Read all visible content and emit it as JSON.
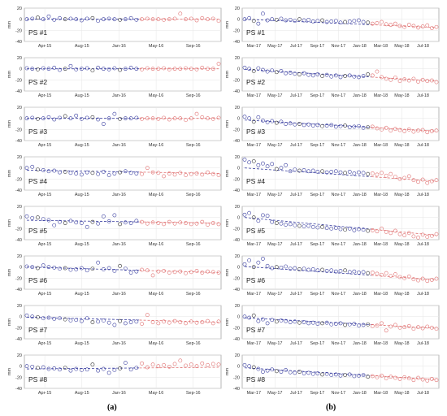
{
  "columns": [
    {
      "label": "(a)",
      "x_ticks": [
        "Apr-15",
        "Aug-15",
        "Jan-16",
        "May-16",
        "Sep-16"
      ],
      "red_start_tick": 3
    },
    {
      "label": "(b)",
      "x_ticks": [
        "Mar-17",
        "May-17",
        "Jul-17",
        "Sep-17",
        "Nov-17",
        "Jan-18",
        "Mar-18",
        "May-18",
        "Jul-18"
      ],
      "red_start_tick": 6
    }
  ],
  "colors": {
    "blue": "#3a3fa0",
    "red": "#e07070",
    "black": "#333333"
  },
  "chart_data": [
    {
      "type": "scatter",
      "panel_group": "(a)",
      "ylabel": "mm",
      "ylim": [
        -40,
        20
      ],
      "yticks": [
        20,
        0,
        -20,
        -40
      ],
      "x_ticks": [
        "Apr-15",
        "Aug-15",
        "Jan-16",
        "May-16",
        "Sep-16"
      ],
      "grid": true,
      "panels": [
        {
          "label": "PS #1",
          "observed": [
            0,
            1,
            3,
            0,
            5,
            -1,
            2,
            0,
            1,
            0,
            -2,
            1,
            2,
            -3,
            0,
            1,
            0,
            -1,
            0,
            2,
            -1,
            0,
            1,
            0,
            0,
            -1,
            0,
            1,
            10,
            0,
            1,
            -2,
            2,
            0,
            1,
            -3
          ],
          "trend_start": 0,
          "trend_end": 0
        },
        {
          "label": "PS #2",
          "observed": [
            1,
            0,
            -1,
            1,
            0,
            2,
            -2,
            0,
            5,
            -1,
            0,
            1,
            -3,
            2,
            0,
            -1,
            1,
            -2,
            0,
            2,
            0,
            -1,
            1,
            0,
            0,
            1,
            -1,
            0,
            0,
            1,
            0,
            -1,
            2,
            0,
            0,
            9
          ],
          "trend_start": 0,
          "trend_end": 0
        },
        {
          "label": "PS #3",
          "observed": [
            0,
            1,
            -1,
            0,
            2,
            -2,
            1,
            4,
            0,
            5,
            -1,
            1,
            2,
            -2,
            -10,
            0,
            8,
            -1,
            0,
            0,
            1,
            -1,
            0,
            0,
            -1,
            1,
            -2,
            0,
            0,
            -3,
            0,
            8,
            2,
            0,
            -1,
            1
          ],
          "trend_start": 0,
          "trend_end": 0
        },
        {
          "label": "PS #4",
          "observed": [
            0,
            2,
            -3,
            -4,
            -6,
            -5,
            -8,
            -7,
            -9,
            -10,
            -12,
            -8,
            -9,
            -11,
            -7,
            -13,
            -10,
            -8,
            -6,
            -9,
            -10,
            -11,
            0,
            -8,
            -9,
            -15,
            -10,
            -12,
            -9,
            -13,
            -11,
            -10,
            -12,
            -8,
            -11,
            -13
          ],
          "trend_start": -4,
          "trend_end": -10
        },
        {
          "label": "PS #5",
          "observed": [
            2,
            -1,
            0,
            -3,
            -5,
            -14,
            -8,
            -10,
            -6,
            -9,
            -10,
            -17,
            -8,
            -11,
            2,
            -7,
            4,
            -12,
            -9,
            -10,
            -6,
            -8,
            -11,
            -9,
            -10,
            -12,
            -8,
            -11,
            -9,
            -10,
            -12,
            -11,
            -8,
            -13,
            -10,
            -12
          ],
          "trend_start": -5,
          "trend_end": -10
        },
        {
          "label": "PS #6",
          "observed": [
            1,
            0,
            -2,
            3,
            0,
            -1,
            -3,
            -2,
            -5,
            -4,
            -2,
            -6,
            -3,
            8,
            -4,
            -2,
            -7,
            2,
            -3,
            -10,
            -8,
            -5,
            -6,
            -15,
            -8,
            -7,
            -10,
            -9,
            -8,
            -11,
            -9,
            -7,
            -10,
            -8,
            -9,
            -10
          ],
          "trend_start": 0,
          "trend_end": -10
        },
        {
          "label": "PS #7",
          "observed": [
            2,
            0,
            -1,
            -3,
            -2,
            -4,
            -3,
            -5,
            -7,
            -6,
            -8,
            -3,
            -10,
            -9,
            -7,
            -11,
            -15,
            -8,
            -12,
            -10,
            -9,
            -13,
            3,
            -10,
            -12,
            -9,
            -11,
            -8,
            -10,
            -12,
            -9,
            -11,
            -10,
            -8,
            -12,
            -9
          ],
          "trend_start": -1,
          "trend_end": -10
        },
        {
          "label": "PS #8",
          "observed": [
            0,
            -1,
            -3,
            -2,
            -5,
            -4,
            -6,
            -3,
            -8,
            -5,
            -7,
            -6,
            3,
            -8,
            -5,
            -12,
            -7,
            -4,
            6,
            -6,
            -3,
            5,
            -2,
            3,
            0,
            2,
            -1,
            4,
            10,
            1,
            3,
            0,
            5,
            2,
            4,
            3
          ],
          "trend_start": -5,
          "trend_end": -2
        }
      ]
    },
    {
      "type": "scatter",
      "panel_group": "(b)",
      "ylabel": "mm",
      "ylim": [
        -40,
        20
      ],
      "yticks": [
        20,
        0,
        -20,
        -40
      ],
      "x_ticks": [
        "Mar-17",
        "May-17",
        "Jul-17",
        "Sep-17",
        "Nov-17",
        "Jan-18",
        "Mar-18",
        "May-18",
        "Jul-18"
      ],
      "grid": true,
      "panels": [
        {
          "label": "PS #1",
          "observed": [
            0,
            2,
            -3,
            -8,
            10,
            -2,
            0,
            -1,
            1,
            -2,
            -1,
            -3,
            0,
            -2,
            -1,
            -4,
            -3,
            -2,
            -5,
            -4,
            -3,
            -6,
            -5,
            -4,
            -3,
            -2,
            -5,
            -6,
            -8,
            -7,
            -5,
            -9,
            -10,
            -8,
            -12,
            -14,
            -10,
            -12,
            -15,
            -13,
            -11,
            -16,
            -14
          ],
          "trend_start": 0,
          "trend_end": -15
        },
        {
          "label": "PS #2",
          "observed": [
            2,
            0,
            -4,
            1,
            -2,
            -5,
            -3,
            -6,
            -4,
            -8,
            -7,
            -9,
            -10,
            -8,
            -11,
            -12,
            -10,
            -13,
            -11,
            -14,
            -12,
            -15,
            -13,
            -12,
            -14,
            -15,
            -13,
            -10,
            -12,
            -5,
            -15,
            -18,
            -20,
            -16,
            -22,
            -19,
            -21,
            -18,
            -23,
            -20,
            -22,
            -21,
            -24
          ],
          "trend_start": -1,
          "trend_end": -22
        },
        {
          "label": "PS #3",
          "observed": [
            3,
            0,
            -6,
            2,
            -4,
            -7,
            -5,
            -8,
            -6,
            -10,
            -9,
            -11,
            -10,
            -12,
            -11,
            -13,
            -12,
            -14,
            -13,
            -12,
            -15,
            -14,
            -13,
            -16,
            -15,
            -14,
            -17,
            -16,
            -15,
            -18,
            -20,
            -17,
            -22,
            -19,
            -21,
            -23,
            -20,
            -24,
            -22,
            -21,
            -25,
            -23,
            -22
          ],
          "trend_start": -3,
          "trend_end": -23
        },
        {
          "label": "PS #4",
          "observed": [
            15,
            10,
            12,
            5,
            8,
            3,
            7,
            -2,
            0,
            5,
            -6,
            -3,
            -5,
            -4,
            -6,
            -5,
            -7,
            -6,
            -8,
            -7,
            -6,
            -8,
            -9,
            -7,
            -10,
            -8,
            -9,
            -11,
            -10,
            -12,
            -9,
            -14,
            -11,
            -16,
            -20,
            -18,
            -15,
            -22,
            -25,
            -21,
            -27,
            -24,
            -22
          ],
          "trend_start": 0,
          "trend_end": -24
        },
        {
          "label": "PS #5",
          "observed": [
            5,
            8,
            0,
            -6,
            4,
            3,
            -8,
            -10,
            -11,
            -13,
            -12,
            -14,
            -15,
            -16,
            -15,
            -17,
            -18,
            -17,
            -19,
            -20,
            -19,
            -21,
            -22,
            -20,
            -23,
            -21,
            -22,
            -24,
            -23,
            -25,
            -20,
            -26,
            -28,
            -24,
            -30,
            -32,
            -28,
            -34,
            -36,
            -31,
            -35,
            -33,
            -30
          ],
          "trend_start": 0,
          "trend_end": -32
        },
        {
          "label": "PS #6",
          "observed": [
            5,
            12,
            0,
            8,
            15,
            2,
            -2,
            0,
            -1,
            1,
            -3,
            -2,
            -4,
            -3,
            -5,
            -4,
            -6,
            -5,
            -7,
            -6,
            -8,
            -7,
            -6,
            -9,
            -8,
            -10,
            -9,
            -11,
            -10,
            -12,
            -14,
            -11,
            -16,
            -13,
            -18,
            -20,
            -17,
            -22,
            -24,
            -21,
            -25,
            -23,
            -21
          ],
          "trend_start": 1,
          "trend_end": -23
        },
        {
          "label": "PS #7",
          "observed": [
            0,
            -2,
            2,
            -8,
            -5,
            -12,
            -6,
            -9,
            -7,
            -8,
            -10,
            -9,
            -11,
            -10,
            -12,
            -11,
            -13,
            -12,
            -11,
            -14,
            -13,
            -12,
            -15,
            -14,
            -13,
            -16,
            -15,
            -14,
            -17,
            -16,
            -12,
            -25,
            -18,
            -15,
            -20,
            -19,
            -17,
            -22,
            -19,
            -21,
            -18,
            -20,
            -22
          ],
          "trend_start": -2,
          "trend_end": -21
        },
        {
          "label": "PS #8",
          "observed": [
            2,
            0,
            -2,
            -5,
            -10,
            -8,
            -6,
            -9,
            -10,
            -7,
            -11,
            -12,
            -10,
            -13,
            -12,
            -14,
            -13,
            -15,
            -14,
            -16,
            -15,
            -17,
            -16,
            -15,
            -18,
            -17,
            -16,
            -19,
            -18,
            -20,
            -17,
            -22,
            -19,
            -21,
            -23,
            -20,
            -22,
            -25,
            -21,
            -24,
            -26,
            -23,
            -25
          ],
          "trend_start": -3,
          "trend_end": -24
        }
      ]
    }
  ]
}
